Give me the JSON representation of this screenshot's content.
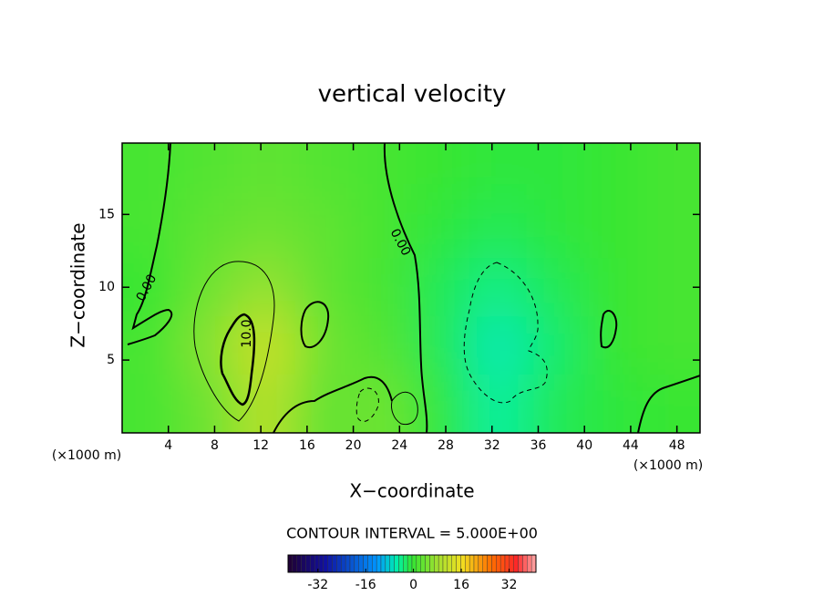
{
  "chart_data": {
    "type": "contour",
    "title": "vertical velocity",
    "x_label": "X−coordinate",
    "y_label": "Z−coordinate",
    "x_unit_labels": [
      "(×1000 m)",
      "(×1000 m)"
    ],
    "xlim": [
      0,
      50
    ],
    "ylim": [
      0,
      19.9
    ],
    "xticks": [
      4,
      8,
      12,
      16,
      20,
      24,
      28,
      32,
      36,
      40,
      44,
      48
    ],
    "yticks": [
      5,
      10,
      15
    ],
    "field": {
      "x": [
        2.5,
        7.5,
        12.5,
        17.5,
        22.5,
        27.5,
        32.5,
        37.5,
        42.5,
        47.5
      ],
      "z": [
        18,
        14,
        10,
        6,
        2
      ],
      "values": [
        [
          1,
          2,
          3,
          2,
          1,
          0,
          -1,
          -1,
          0,
          1
        ],
        [
          1,
          3,
          4,
          3,
          1,
          -1,
          -2,
          -1,
          0,
          1
        ],
        [
          0,
          4,
          7,
          3,
          1,
          -2,
          -4,
          -2,
          0,
          1
        ],
        [
          1,
          6,
          12,
          4,
          2,
          -2,
          -6,
          -3,
          0,
          1
        ],
        [
          1,
          4,
          10,
          3,
          4,
          -1,
          -5,
          -2,
          -1,
          0
        ]
      ]
    },
    "contour_labels": [
      "0.00",
      "0.00",
      "10.0"
    ],
    "contour_interval": "CONTOUR INTERVAL = 5.000E+00",
    "colorbar": {
      "lim": [
        -42,
        41
      ],
      "ticks": [
        -32,
        -16,
        0,
        16,
        32
      ]
    }
  }
}
